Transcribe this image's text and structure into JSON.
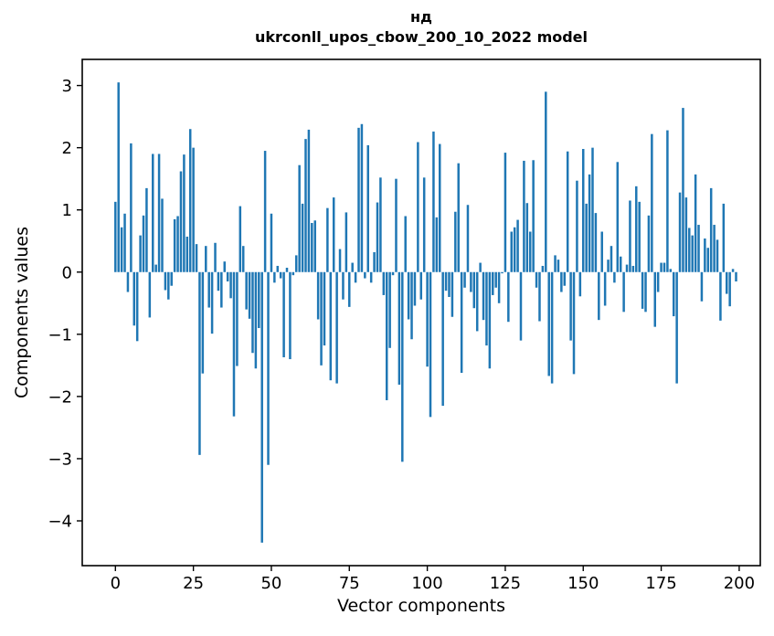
{
  "chart_data": {
    "type": "bar",
    "title_line1": "нд",
    "title_line2": "ukrconll_upos_cbow_200_10_2022 model",
    "xlabel": "Vector components",
    "ylabel": "Components values",
    "bar_color": "#1f77b4",
    "axis_color": "#000000",
    "background_color": "#ffffff",
    "xlim": [
      -10.5,
      207
    ],
    "ylim": [
      -4.72,
      3.42
    ],
    "x_ticks": {
      "values": [
        0,
        25,
        50,
        75,
        100,
        125,
        150,
        175,
        200
      ],
      "labels": [
        "0",
        "25",
        "50",
        "75",
        "100",
        "125",
        "150",
        "175",
        "200"
      ]
    },
    "y_ticks": {
      "values": [
        3,
        2,
        1,
        0,
        -1,
        -2,
        -3,
        -4
      ],
      "labels": [
        "3",
        "2",
        "1",
        "0",
        "−1",
        "−2",
        "−3",
        "−4"
      ]
    },
    "grid": false,
    "legend": "none",
    "values": [
      1.13,
      3.05,
      0.72,
      0.94,
      -0.32,
      2.07,
      -0.86,
      -1.11,
      0.59,
      0.91,
      1.35,
      -0.73,
      1.9,
      0.12,
      1.9,
      1.18,
      -0.29,
      -0.44,
      -0.22,
      0.85,
      0.9,
      1.62,
      1.89,
      0.57,
      2.3,
      2.0,
      0.45,
      -2.94,
      -1.63,
      0.42,
      -0.57,
      -0.99,
      0.47,
      -0.3,
      -0.57,
      0.17,
      -0.15,
      -0.42,
      -2.32,
      -1.51,
      1.06,
      0.42,
      -0.6,
      -0.75,
      -1.3,
      -1.55,
      -0.9,
      -4.35,
      1.95,
      -3.1,
      0.94,
      -0.17,
      0.1,
      -0.1,
      -1.37,
      0.07,
      -1.4,
      -0.05,
      0.27,
      1.72,
      1.1,
      2.14,
      2.29,
      0.79,
      0.83,
      -0.76,
      -1.5,
      -1.18,
      1.03,
      -1.74,
      1.2,
      -1.79,
      0.37,
      -0.44,
      0.96,
      -0.56,
      0.15,
      -0.17,
      2.32,
      2.38,
      -0.1,
      2.04,
      -0.17,
      0.32,
      1.12,
      1.52,
      -0.37,
      -2.06,
      -1.22,
      -0.05,
      1.5,
      -1.81,
      -3.05,
      0.9,
      -0.76,
      -1.08,
      -0.54,
      2.09,
      -0.44,
      1.52,
      -1.52,
      -2.33,
      2.26,
      0.88,
      2.06,
      -2.15,
      -0.3,
      -0.4,
      -0.72,
      0.97,
      1.75,
      -1.62,
      -0.25,
      1.08,
      -0.32,
      -0.58,
      -0.95,
      0.15,
      -0.77,
      -1.18,
      -1.55,
      -0.37,
      -0.25,
      -0.5,
      -0.02,
      1.92,
      -0.8,
      0.65,
      0.72,
      0.84,
      -1.1,
      1.79,
      1.11,
      0.65,
      1.8,
      -0.25,
      -0.79,
      0.1,
      2.9,
      -1.67,
      -1.79,
      0.27,
      0.2,
      -0.32,
      -0.22,
      1.94,
      -1.1,
      -1.64,
      1.47,
      -0.39,
      1.98,
      1.1,
      1.57,
      2.0,
      0.95,
      -0.77,
      0.65,
      -0.54,
      0.2,
      0.42,
      -0.17,
      1.77,
      0.25,
      -0.64,
      0.12,
      1.15,
      0.1,
      1.38,
      1.13,
      -0.59,
      -0.64,
      0.91,
      2.22,
      -0.88,
      -0.32,
      0.15,
      0.15,
      2.28,
      0.05,
      -0.71,
      -1.79,
      1.28,
      2.64,
      1.2,
      0.71,
      0.59,
      1.57,
      0.76,
      -0.47,
      0.54,
      0.39,
      1.35,
      0.76,
      0.52,
      -0.78,
      1.1,
      -0.35,
      -0.55,
      0.05,
      -0.15
    ]
  }
}
